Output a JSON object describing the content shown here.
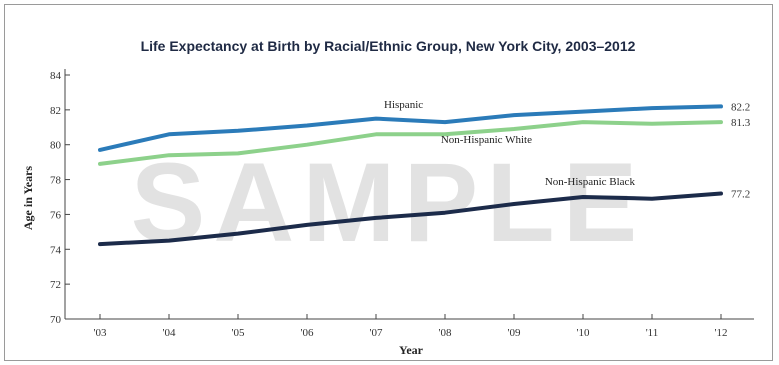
{
  "watermark": "SAMPLE",
  "chart_data": {
    "type": "line",
    "title": "Life Expectancy at Birth by Racial/Ethnic Group, New York City, 2003–2012",
    "xlabel": "Year",
    "ylabel": "Age in Years",
    "categories": [
      "'03",
      "'04",
      "'05",
      "'06",
      "'07",
      "'08",
      "'09",
      "'10",
      "'11",
      "'12"
    ],
    "ylim": [
      70,
      84
    ],
    "yticks": [
      70,
      72,
      74,
      76,
      78,
      80,
      82,
      84
    ],
    "grid": false,
    "series": [
      {
        "name": "Hispanic",
        "color": "#2b7bb9",
        "values": [
          79.7,
          80.6,
          80.8,
          81.1,
          81.5,
          81.3,
          81.7,
          81.9,
          82.1,
          82.2
        ],
        "end_label": "82.2"
      },
      {
        "name": "Non-Hispanic White",
        "color": "#8dd18b",
        "values": [
          78.9,
          79.4,
          79.5,
          80.0,
          80.6,
          80.6,
          80.9,
          81.3,
          81.2,
          81.3
        ],
        "end_label": "81.3"
      },
      {
        "name": "Non-Hispanic Black",
        "color": "#1c2b4a",
        "values": [
          74.3,
          74.5,
          74.9,
          75.4,
          75.8,
          76.1,
          76.6,
          77.0,
          76.9,
          77.2
        ],
        "end_label": "77.2"
      }
    ]
  }
}
